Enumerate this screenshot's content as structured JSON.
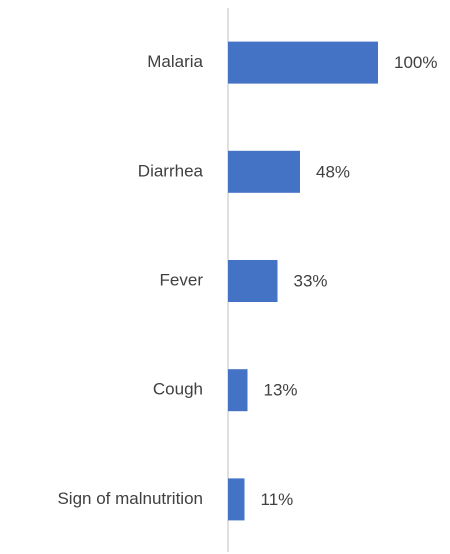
{
  "chart_data": {
    "type": "barh",
    "categories": [
      "Malaria",
      "Diarrhea",
      "Fever",
      "Cough",
      "Sign of malnutrition"
    ],
    "values": [
      100,
      48,
      33,
      13,
      11
    ],
    "value_labels": [
      "100%",
      "48%",
      "33%",
      "13%",
      "11%"
    ],
    "color": "#4472c4",
    "xlim": [
      0,
      100
    ]
  }
}
